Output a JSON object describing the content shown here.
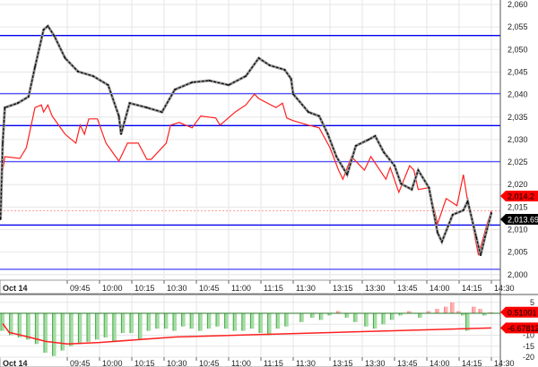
{
  "chart_data": [
    {
      "type": "line",
      "panel": "price",
      "date_label": "Oct 14",
      "x_ticks": [
        "09:45",
        "10:00",
        "10:15",
        "10:30",
        "10:45",
        "11:00",
        "11:15",
        "11:30",
        "13:15",
        "13:30",
        "13:45",
        "14:00",
        "14:15",
        "14:30"
      ],
      "y_ticks": [
        "2,000",
        "2,005",
        "2,010",
        "2,015",
        "2,020",
        "2,025",
        "2,030",
        "2,035",
        "2,040",
        "2,045",
        "2,050",
        "2,055",
        "2,060"
      ],
      "ylim": [
        2000,
        2060
      ],
      "grid": true,
      "colors": {
        "price": "#111111",
        "overlay": "#ff2020",
        "levels": "#0000ee",
        "grid": "#e6e6e6"
      },
      "series": [
        {
          "key": "price",
          "points": [
            [
              "09:14",
              2012.3
            ],
            [
              "09:15",
              2029.2
            ],
            [
              "09:16",
              2037.1
            ],
            [
              "09:22",
              2038.1
            ],
            [
              "09:27",
              2039.5
            ],
            [
              "09:30",
              2046.1
            ],
            [
              "09:34",
              2054.4
            ],
            [
              "09:36",
              2055.2
            ],
            [
              "09:39",
              2053.0
            ],
            [
              "09:44",
              2048.1
            ],
            [
              "09:50",
              2045.1
            ],
            [
              "09:57",
              2044.1
            ],
            [
              "10:04",
              2042.1
            ],
            [
              "10:09",
              2035.2
            ],
            [
              "10:10",
              2031.2
            ],
            [
              "10:14",
              2038.1
            ],
            [
              "10:22",
              2037.1
            ],
            [
              "10:29",
              2036.1
            ],
            [
              "10:35",
              2041.1
            ],
            [
              "10:43",
              2042.7
            ],
            [
              "10:51",
              2043.1
            ],
            [
              "11:00",
              2042.1
            ],
            [
              "11:08",
              2044.1
            ],
            [
              "11:14",
              2048.1
            ],
            [
              "11:19",
              2046.5
            ],
            [
              "11:26",
              2045.5
            ],
            [
              "11:29",
              2043.5
            ],
            [
              "11:30",
              2040.1
            ],
            [
              "13:05",
              2036.1
            ],
            [
              "13:10",
              2035.2
            ],
            [
              "13:14",
              2031.2
            ],
            [
              "13:18",
              2026.2
            ],
            [
              "13:23",
              2022.2
            ],
            [
              "13:27",
              2028.6
            ],
            [
              "13:33",
              2030.0
            ],
            [
              "13:36",
              2030.8
            ],
            [
              "13:40",
              2027.2
            ],
            [
              "13:45",
              2024.2
            ],
            [
              "13:48",
              2020.2
            ],
            [
              "13:53",
              2018.9
            ],
            [
              "13:56",
              2023.2
            ],
            [
              "14:01",
              2019.3
            ],
            [
              "14:05",
              2009.3
            ],
            [
              "14:07",
              2007.3
            ],
            [
              "14:12",
              2013.3
            ],
            [
              "14:17",
              2014.3
            ],
            [
              "14:19",
              2016.3
            ],
            [
              "14:23",
              2008.3
            ],
            [
              "14:25",
              2004.3
            ],
            [
              "14:27",
              2008.3
            ],
            [
              "14:30",
              2013.7
            ]
          ]
        },
        {
          "key": "overlay",
          "points": [
            [
              "09:14",
              2012.3
            ],
            [
              "09:15",
              2023.2
            ],
            [
              "09:16",
              2026.2
            ],
            [
              "09:23",
              2025.8
            ],
            [
              "09:26",
              2028.2
            ],
            [
              "09:30",
              2037.1
            ],
            [
              "09:33",
              2037.7
            ],
            [
              "09:34",
              2036.1
            ],
            [
              "09:36",
              2037.7
            ],
            [
              "09:38",
              2035.2
            ],
            [
              "09:44",
              2031.2
            ],
            [
              "09:49",
              2029.2
            ],
            [
              "09:51",
              2033.2
            ],
            [
              "09:53",
              2031.2
            ],
            [
              "09:55",
              2034.6
            ],
            [
              "09:59",
              2034.6
            ],
            [
              "10:03",
              2029.2
            ],
            [
              "10:09",
              2025.2
            ],
            [
              "10:13",
              2029.2
            ],
            [
              "10:18",
              2029.2
            ],
            [
              "10:22",
              2025.6
            ],
            [
              "10:24",
              2025.6
            ],
            [
              "10:31",
              2029.2
            ],
            [
              "10:33",
              2033.2
            ],
            [
              "10:37",
              2033.8
            ],
            [
              "10:43",
              2032.6
            ],
            [
              "10:47",
              2035.2
            ],
            [
              "10:54",
              2034.8
            ],
            [
              "10:56",
              2033.2
            ],
            [
              "11:03",
              2036.1
            ],
            [
              "11:08",
              2037.7
            ],
            [
              "11:12",
              2040.1
            ],
            [
              "11:14",
              2039.1
            ],
            [
              "11:22",
              2037.1
            ],
            [
              "11:25",
              2038.1
            ],
            [
              "11:27",
              2034.8
            ],
            [
              "11:30",
              2034.2
            ],
            [
              "13:05",
              2033.2
            ],
            [
              "13:10",
              2032.6
            ],
            [
              "13:15",
              2028.2
            ],
            [
              "13:19",
              2023.2
            ],
            [
              "13:21",
              2021.2
            ],
            [
              "13:25",
              2026.2
            ],
            [
              "13:31",
              2023.2
            ],
            [
              "13:34",
              2026.2
            ],
            [
              "13:41",
              2021.2
            ],
            [
              "13:43",
              2023.8
            ],
            [
              "13:47",
              2018.3
            ],
            [
              "13:52",
              2024.2
            ],
            [
              "13:54",
              2023.2
            ],
            [
              "13:56",
              2018.9
            ],
            [
              "14:01",
              2019.3
            ],
            [
              "14:05",
              2011.3
            ],
            [
              "14:09",
              2016.9
            ],
            [
              "14:14",
              2015.3
            ],
            [
              "14:17",
              2022.2
            ],
            [
              "14:19",
              2016.3
            ],
            [
              "14:22",
              2009.3
            ],
            [
              "14:24",
              2004.3
            ],
            [
              "14:28",
              2011.3
            ],
            [
              "14:30",
              2014.2
            ]
          ]
        }
      ],
      "horizontal_levels": [
        2053.1,
        2040.2,
        2033.1,
        2025.1,
        2011.0,
        2001.2
      ],
      "reference_line": 2014.2,
      "tags": [
        {
          "label": "2,014.2",
          "value": 2014.2,
          "color": "#ff0000"
        },
        {
          "label": "2,013.69",
          "value": 2013.69,
          "color": "#000000"
        }
      ]
    },
    {
      "type": "bar",
      "panel": "oscillator",
      "x_ticks": [
        "09:45",
        "10:00",
        "10:15",
        "10:30",
        "10:45",
        "11:00",
        "11:15",
        "11:30",
        "13:15",
        "13:30",
        "13:45",
        "14:00",
        "14:15",
        "14:30"
      ],
      "y_ticks": [
        "5",
        "-10",
        "-15",
        "-20"
      ],
      "ylim": [
        -20,
        5
      ],
      "colors": {
        "negative": "#3faa3f",
        "positive": "#ff7070",
        "signal": "#ff2020"
      },
      "histogram": [
        [
          "09:15",
          -8
        ],
        [
          "09:19",
          -10
        ],
        [
          "09:23",
          -11
        ],
        [
          "09:27",
          -12
        ],
        [
          "09:31",
          -14
        ],
        [
          "09:35",
          -18
        ],
        [
          "09:39",
          -19.5
        ],
        [
          "09:43",
          -17
        ],
        [
          "09:47",
          -15
        ],
        [
          "09:51",
          -14
        ],
        [
          "09:55",
          -13
        ],
        [
          "09:59",
          -12
        ],
        [
          "10:03",
          -11
        ],
        [
          "10:07",
          -13
        ],
        [
          "10:11",
          -9
        ],
        [
          "10:15",
          -9
        ],
        [
          "10:19",
          -12
        ],
        [
          "10:23",
          -8
        ],
        [
          "10:27",
          -7
        ],
        [
          "10:31",
          -7
        ],
        [
          "10:35",
          -8
        ],
        [
          "10:39",
          -6
        ],
        [
          "10:43",
          -7
        ],
        [
          "10:47",
          -8
        ],
        [
          "10:51",
          -7
        ],
        [
          "10:55",
          -6
        ],
        [
          "10:59",
          -7
        ],
        [
          "11:03",
          -8
        ],
        [
          "11:07",
          -8
        ],
        [
          "11:11",
          -7
        ],
        [
          "11:15",
          -9
        ],
        [
          "11:19",
          -10
        ],
        [
          "11:23",
          -7
        ],
        [
          "11:27",
          -6
        ],
        [
          "13:02",
          -4
        ],
        [
          "13:07",
          -2
        ],
        [
          "13:11",
          -3
        ],
        [
          "13:15",
          -1
        ],
        [
          "13:19",
          1
        ],
        [
          "13:23",
          -2
        ],
        [
          "13:27",
          -4
        ],
        [
          "13:32",
          -6
        ],
        [
          "13:36",
          -7
        ],
        [
          "13:40",
          -5
        ],
        [
          "13:44",
          -3
        ],
        [
          "13:48",
          -1
        ],
        [
          "13:52",
          1
        ],
        [
          "13:57",
          -2
        ],
        [
          "14:01",
          1
        ],
        [
          "14:05",
          2
        ],
        [
          "14:09",
          3
        ],
        [
          "14:12",
          5
        ],
        [
          "14:15",
          1
        ],
        [
          "14:17",
          -1
        ],
        [
          "14:19",
          -8
        ],
        [
          "14:22",
          3
        ],
        [
          "14:25",
          2
        ],
        [
          "14:27",
          -1
        ],
        [
          "14:30",
          0.5
        ]
      ],
      "signal": [
        [
          "09:15",
          -4.7
        ],
        [
          "09:18",
          -8.7
        ],
        [
          "09:27",
          -10.8
        ],
        [
          "09:35",
          -12.8
        ],
        [
          "09:45",
          -14
        ],
        [
          "10:00",
          -13.3
        ],
        [
          "10:35",
          -10.8
        ],
        [
          "14:30",
          -6.7
        ]
      ],
      "tags": [
        {
          "label": "0.51001",
          "value": 0.51,
          "color": "#ff0000"
        },
        {
          "label": "-6.67812",
          "value": -6.678,
          "color": "#ff0000"
        }
      ]
    }
  ]
}
